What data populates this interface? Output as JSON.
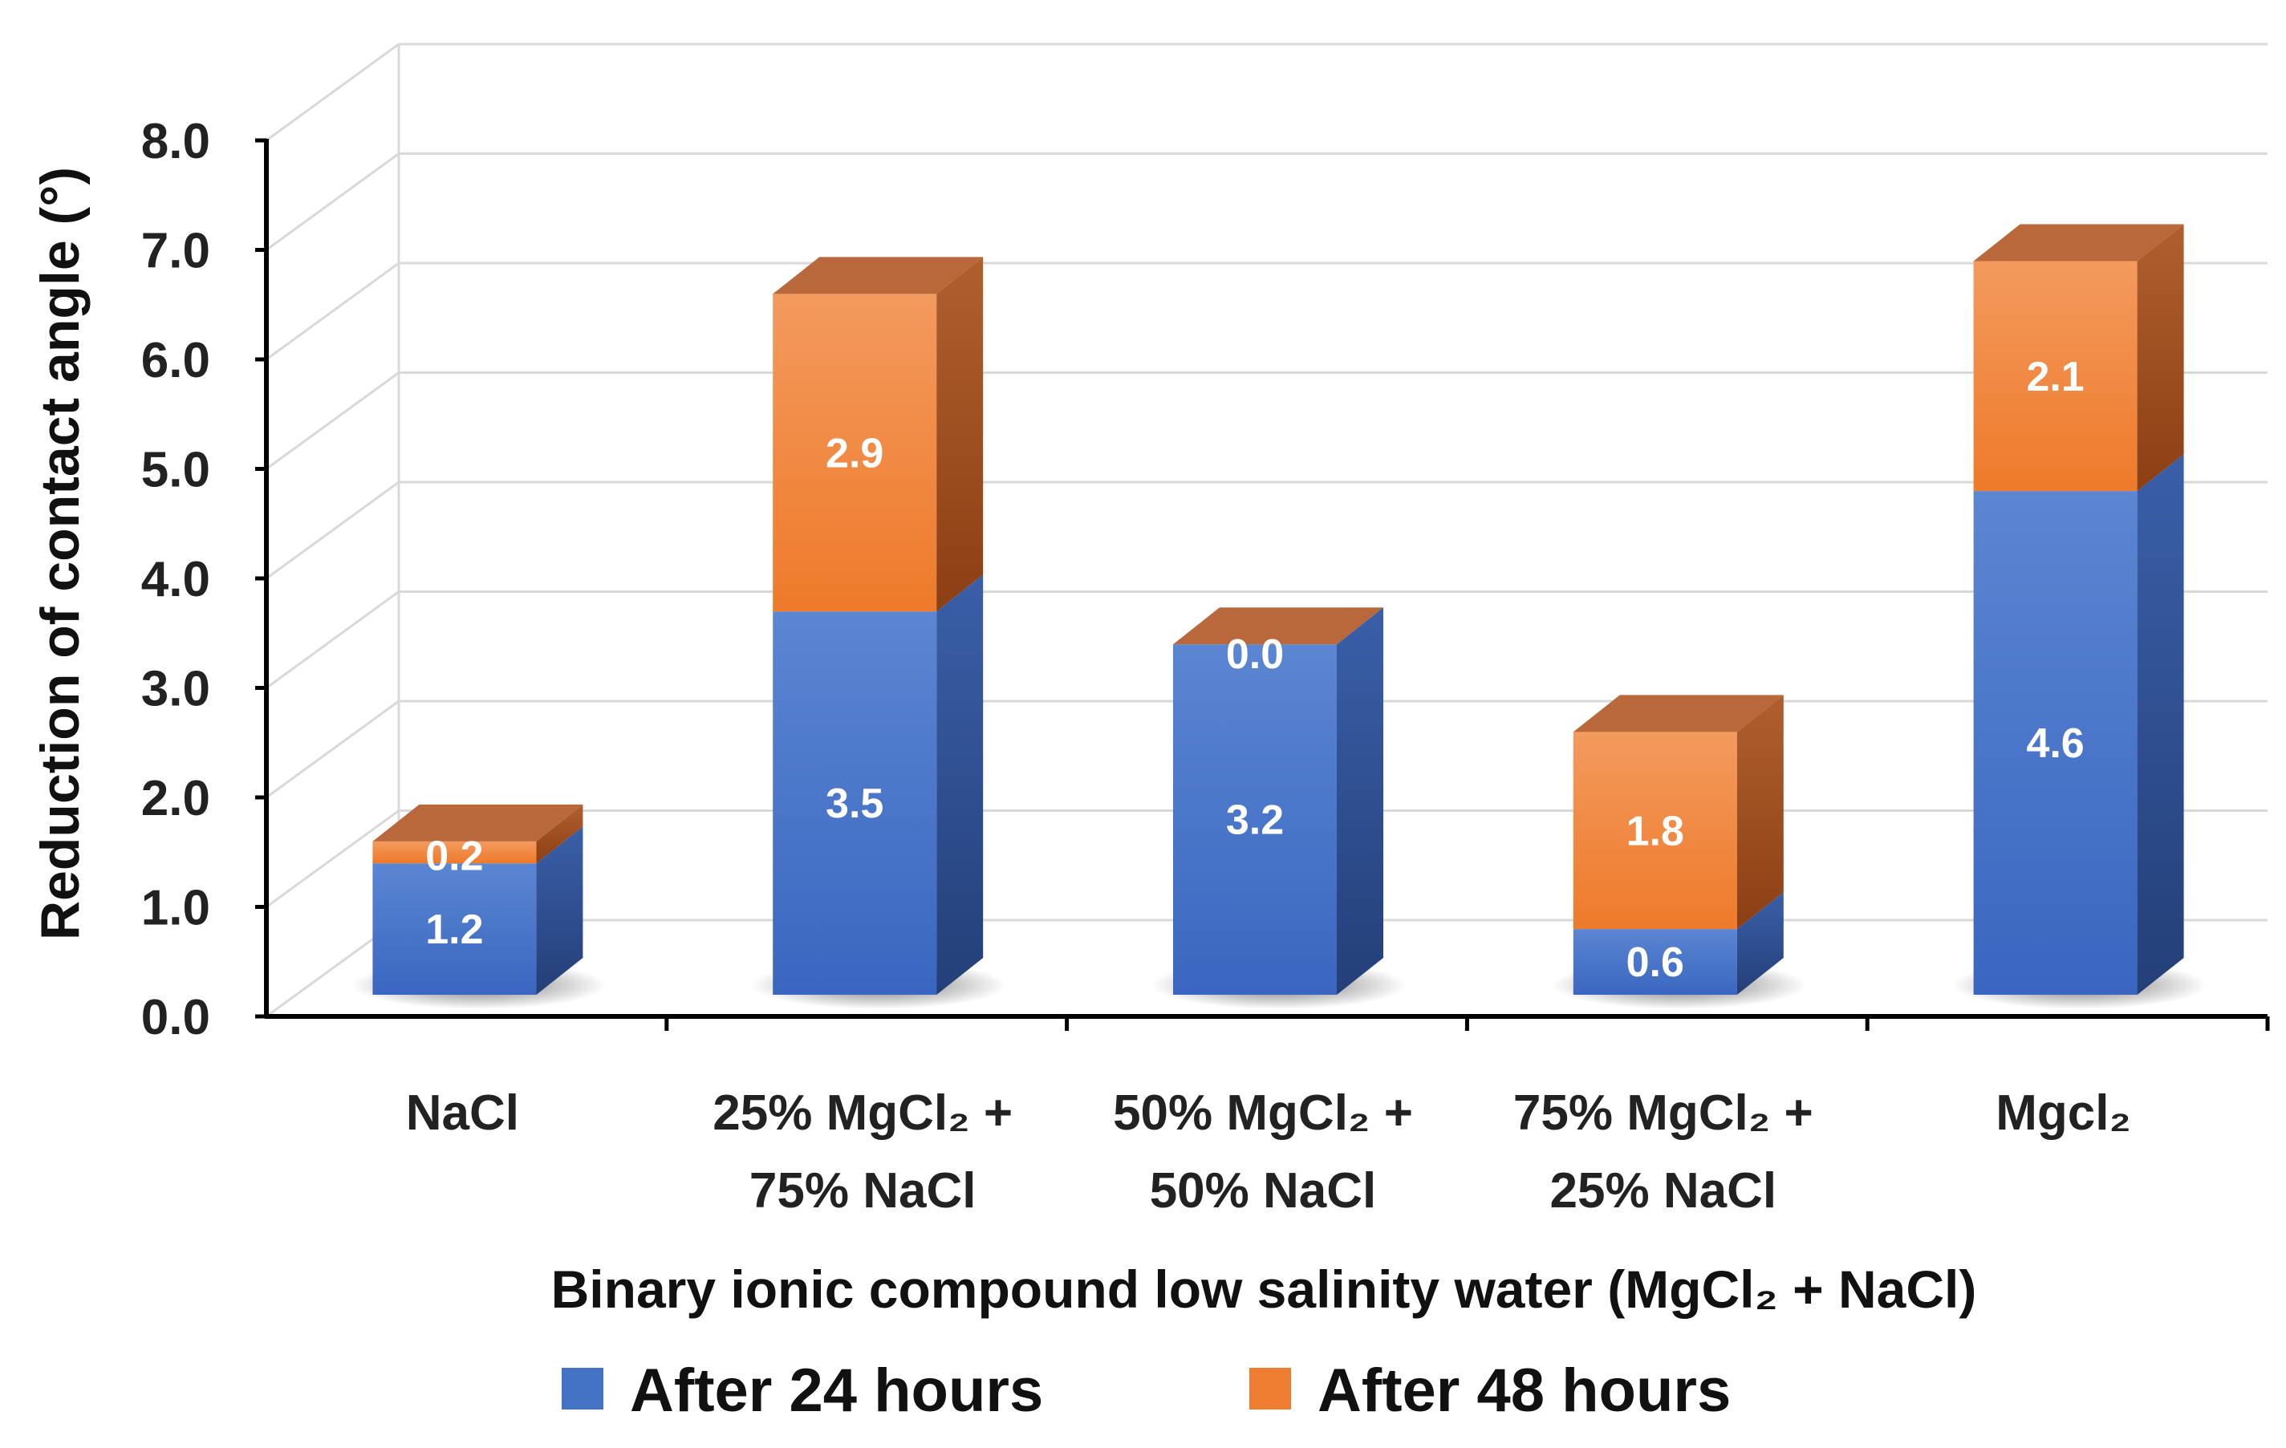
{
  "chart_data": {
    "type": "bar",
    "stacked": true,
    "style": "3d",
    "title": "",
    "categories": [
      {
        "line1": "NaCl",
        "line2": ""
      },
      {
        "line1": "25% MgCl₂ +",
        "line2": "75% NaCl"
      },
      {
        "line1": "50% MgCl₂ +",
        "line2": "50% NaCl"
      },
      {
        "line1": "75% MgCl₂ +",
        "line2": "25% NaCl"
      },
      {
        "line1": "Mgcl₂",
        "line2": ""
      }
    ],
    "series": [
      {
        "name": "After 24 hours",
        "values": [
          1.2,
          3.5,
          3.2,
          0.6,
          4.6
        ],
        "labels": [
          "1.2",
          "3.5",
          "3.2",
          "0.6",
          "4.6"
        ]
      },
      {
        "name": "After 48 hours",
        "values": [
          0.2,
          2.9,
          0.0,
          1.8,
          2.1
        ],
        "labels": [
          "0.2",
          "2.9",
          "0.0",
          "1.8",
          "2.1"
        ]
      }
    ],
    "xlabel": "Binary ionic compound low salinity water (MgCl₂ + NaCl)",
    "ylabel": "Reduction of contact angle (°)",
    "ylim": [
      0,
      8
    ],
    "yticks": [
      "0.0",
      "1.0",
      "2.0",
      "3.0",
      "4.0",
      "5.0",
      "6.0",
      "7.0",
      "8.0"
    ],
    "grid": true,
    "legend": "bottom"
  },
  "colors": {
    "s1_front": "#4472C4",
    "s1_front_dark": "#3562BC",
    "s1_side": "#2E4D8C",
    "s1_top": "#5B85D0",
    "s2_front": "#ED7D31",
    "s2_front_light": "#F4A372",
    "s2_side": "#A24E1B",
    "s2_top": "#B8683A",
    "grid": "#d9d9d9",
    "axis": "#000000"
  }
}
